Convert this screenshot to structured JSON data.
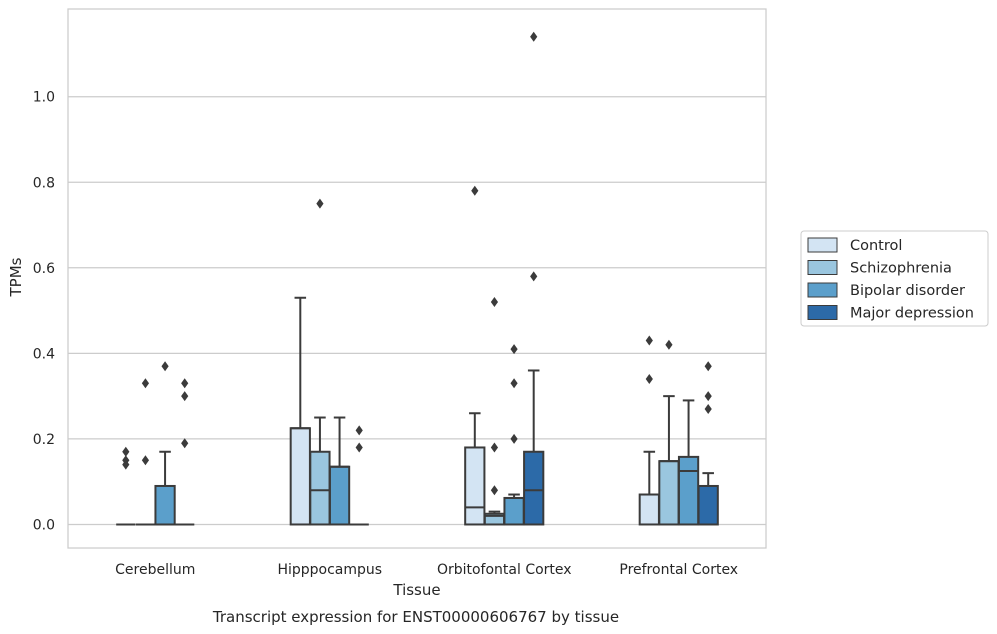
{
  "chart_data": {
    "type": "box",
    "caption": "Transcript expression for ENST00000606767 by tissue",
    "xlabel": "Tissue",
    "ylabel": "TPMs",
    "ylim": [
      -0.055,
      1.205
    ],
    "yticks": [
      0.0,
      0.2,
      0.4,
      0.6,
      0.8,
      1.0
    ],
    "ytick_labels": [
      "0.0",
      "0.2",
      "0.4",
      "0.6",
      "0.8",
      "1.0"
    ],
    "grid": "horizontal",
    "legend_position": "right",
    "categories": [
      "Cerebellum",
      "Hipppocampus",
      "Orbitofontal Cortex",
      "Prefrontal Cortex"
    ],
    "series": [
      {
        "name": "Control",
        "color": "#d3e4f3",
        "boxes": [
          {
            "q1": 0,
            "median": 0,
            "q3": 0,
            "whisker_low": 0,
            "whisker_high": 0,
            "outliers": [
              0.17,
              0.15,
              0.14
            ]
          },
          {
            "q1": 0,
            "median": 0.225,
            "q3": 0.225,
            "whisker_low": 0,
            "whisker_high": 0.53,
            "outliers": []
          },
          {
            "q1": 0,
            "median": 0.04,
            "q3": 0.18,
            "whisker_low": 0,
            "whisker_high": 0.26,
            "outliers": [
              0.78
            ]
          },
          {
            "q1": 0,
            "median": 0.07,
            "q3": 0.07,
            "whisker_low": 0,
            "whisker_high": 0.17,
            "outliers": [
              0.43,
              0.34
            ]
          }
        ]
      },
      {
        "name": "Schizophrenia",
        "color": "#9ac6df",
        "boxes": [
          {
            "q1": 0,
            "median": 0,
            "q3": 0,
            "whisker_low": 0,
            "whisker_high": 0,
            "outliers": [
              0.33,
              0.15
            ]
          },
          {
            "q1": 0,
            "median": 0.08,
            "q3": 0.17,
            "whisker_low": 0,
            "whisker_high": 0.25,
            "outliers": [
              0.75
            ]
          },
          {
            "q1": 0,
            "median": 0.02,
            "q3": 0.025,
            "whisker_low": 0,
            "whisker_high": 0.03,
            "outliers": [
              0.52,
              0.18,
              0.08
            ]
          },
          {
            "q1": 0,
            "median": 0.148,
            "q3": 0.148,
            "whisker_low": 0,
            "whisker_high": 0.3,
            "outliers": [
              0.42
            ]
          }
        ]
      },
      {
        "name": "Bipolar disorder",
        "color": "#5b9fcb",
        "boxes": [
          {
            "q1": 0,
            "median": 0,
            "q3": 0.09,
            "whisker_low": 0,
            "whisker_high": 0.17,
            "outliers": [
              0.37
            ]
          },
          {
            "q1": 0,
            "median": 0.135,
            "q3": 0.135,
            "whisker_low": 0,
            "whisker_high": 0.25,
            "outliers": []
          },
          {
            "q1": 0,
            "median": 0.062,
            "q3": 0.062,
            "whisker_low": 0,
            "whisker_high": 0.07,
            "outliers": [
              0.41,
              0.33,
              0.2
            ]
          },
          {
            "q1": 0,
            "median": 0.125,
            "q3": 0.158,
            "whisker_low": 0,
            "whisker_high": 0.29,
            "outliers": []
          }
        ]
      },
      {
        "name": "Major depression",
        "color": "#2c6aa8",
        "boxes": [
          {
            "q1": 0,
            "median": 0,
            "q3": 0,
            "whisker_low": 0,
            "whisker_high": 0,
            "outliers": [
              0.33,
              0.3,
              0.19
            ]
          },
          {
            "q1": 0,
            "median": 0,
            "q3": 0,
            "whisker_low": 0,
            "whisker_high": 0,
            "outliers": [
              0.22,
              0.18
            ]
          },
          {
            "q1": 0,
            "median": 0.08,
            "q3": 0.17,
            "whisker_low": 0,
            "whisker_high": 0.36,
            "outliers": [
              1.14,
              0.58
            ]
          },
          {
            "q1": 0,
            "median": 0.09,
            "q3": 0.09,
            "whisker_low": 0,
            "whisker_high": 0.12,
            "outliers": [
              0.37,
              0.3,
              0.27
            ]
          }
        ]
      }
    ]
  }
}
